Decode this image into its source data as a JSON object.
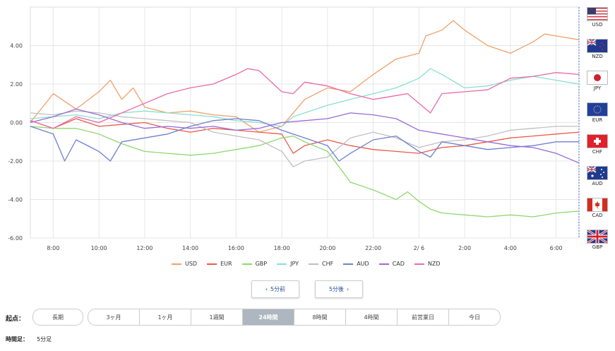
{
  "chart_data": {
    "type": "line",
    "ylim": [
      -6.0,
      6.0
    ],
    "y_ticks": [
      4.0,
      2.0,
      0.0,
      -2.0,
      -4.0,
      -6.0
    ],
    "y_tick_labels": [
      "4.00",
      "2.00",
      "0.00",
      "-2.00",
      "-4.00",
      "-6.00"
    ],
    "x_tick_labels": [
      "8:00",
      "10:00",
      "12:00",
      "14:00",
      "16:00",
      "18:00",
      "20:00",
      "22:00",
      "2/ 6",
      "2:00",
      "4:00",
      "6:00"
    ],
    "x_tick_hours": [
      8,
      10,
      12,
      14,
      16,
      18,
      20,
      22,
      24,
      26,
      28,
      30
    ],
    "xlim_hours": [
      7.0,
      31.0
    ],
    "grid": true,
    "legend_position": "bottom",
    "series": [
      {
        "name": "USD",
        "color": "#f0a06a",
        "points": [
          [
            7.0,
            0.0
          ],
          [
            8.0,
            1.5
          ],
          [
            9.0,
            0.7
          ],
          [
            10.0,
            1.6
          ],
          [
            10.5,
            2.2
          ],
          [
            11.0,
            1.2
          ],
          [
            11.5,
            1.8
          ],
          [
            12.0,
            0.8
          ],
          [
            13.0,
            0.5
          ],
          [
            14.0,
            0.6
          ],
          [
            15.0,
            0.4
          ],
          [
            16.0,
            0.3
          ],
          [
            17.0,
            -0.5
          ],
          [
            18.0,
            -0.2
          ],
          [
            18.5,
            0.5
          ],
          [
            19.0,
            1.2
          ],
          [
            20.0,
            1.8
          ],
          [
            21.0,
            1.6
          ],
          [
            22.0,
            2.5
          ],
          [
            23.0,
            3.3
          ],
          [
            24.0,
            3.6
          ],
          [
            24.3,
            4.5
          ],
          [
            25.0,
            4.8
          ],
          [
            25.5,
            5.3
          ],
          [
            26.0,
            4.8
          ],
          [
            27.0,
            4.0
          ],
          [
            28.0,
            3.6
          ],
          [
            29.0,
            4.2
          ],
          [
            29.5,
            4.6
          ],
          [
            30.0,
            4.5
          ],
          [
            31.0,
            4.3
          ]
        ]
      },
      {
        "name": "EUR",
        "color": "#ea5a4a",
        "points": [
          [
            7.0,
            0.1
          ],
          [
            8.0,
            -0.3
          ],
          [
            9.0,
            0.2
          ],
          [
            10.0,
            -0.2
          ],
          [
            11.0,
            -0.1
          ],
          [
            12.0,
            0.0
          ],
          [
            13.0,
            -0.3
          ],
          [
            14.0,
            -0.5
          ],
          [
            15.0,
            -0.3
          ],
          [
            16.0,
            -0.4
          ],
          [
            17.0,
            -0.5
          ],
          [
            18.0,
            -0.6
          ],
          [
            18.5,
            -1.6
          ],
          [
            19.0,
            -1.2
          ],
          [
            20.0,
            -0.9
          ],
          [
            21.0,
            -1.2
          ],
          [
            22.0,
            -1.4
          ],
          [
            23.0,
            -1.5
          ],
          [
            24.0,
            -1.6
          ],
          [
            25.0,
            -1.3
          ],
          [
            26.0,
            -1.2
          ],
          [
            27.0,
            -1.0
          ],
          [
            28.0,
            -0.8
          ],
          [
            29.0,
            -0.7
          ],
          [
            30.0,
            -0.6
          ],
          [
            31.0,
            -0.5
          ]
        ]
      },
      {
        "name": "GBP",
        "color": "#8ed870",
        "points": [
          [
            7.0,
            -0.2
          ],
          [
            8.0,
            -0.3
          ],
          [
            9.0,
            -0.3
          ],
          [
            10.0,
            -0.6
          ],
          [
            11.0,
            -1.1
          ],
          [
            12.0,
            -1.5
          ],
          [
            13.0,
            -1.6
          ],
          [
            14.0,
            -1.7
          ],
          [
            15.0,
            -1.6
          ],
          [
            16.0,
            -1.4
          ],
          [
            17.0,
            -1.2
          ],
          [
            18.0,
            -0.8
          ],
          [
            18.5,
            -0.7
          ],
          [
            19.0,
            -1.0
          ],
          [
            20.0,
            -1.5
          ],
          [
            20.5,
            -2.3
          ],
          [
            21.0,
            -3.1
          ],
          [
            22.0,
            -3.5
          ],
          [
            23.0,
            -4.0
          ],
          [
            23.5,
            -3.6
          ],
          [
            24.0,
            -4.1
          ],
          [
            24.5,
            -4.5
          ],
          [
            25.0,
            -4.7
          ],
          [
            26.0,
            -4.8
          ],
          [
            27.0,
            -4.9
          ],
          [
            28.0,
            -4.8
          ],
          [
            29.0,
            -4.9
          ],
          [
            30.0,
            -4.7
          ],
          [
            31.0,
            -4.6
          ]
        ]
      },
      {
        "name": "JPY",
        "color": "#88e0d0",
        "points": [
          [
            7.0,
            0.2
          ],
          [
            8.0,
            0.3
          ],
          [
            9.0,
            0.4
          ],
          [
            10.0,
            0.2
          ],
          [
            11.0,
            0.5
          ],
          [
            12.0,
            0.6
          ],
          [
            13.0,
            0.5
          ],
          [
            14.0,
            0.4
          ],
          [
            15.0,
            0.3
          ],
          [
            16.0,
            0.1
          ],
          [
            17.0,
            0.0
          ],
          [
            18.0,
            -0.2
          ],
          [
            18.5,
            0.3
          ],
          [
            19.0,
            0.5
          ],
          [
            20.0,
            0.9
          ],
          [
            21.0,
            1.2
          ],
          [
            22.0,
            1.5
          ],
          [
            23.0,
            1.8
          ],
          [
            24.0,
            2.3
          ],
          [
            24.5,
            2.8
          ],
          [
            25.0,
            2.5
          ],
          [
            26.0,
            1.8
          ],
          [
            27.0,
            1.9
          ],
          [
            28.0,
            2.2
          ],
          [
            29.0,
            2.4
          ],
          [
            30.0,
            2.2
          ],
          [
            31.0,
            2.0
          ]
        ]
      },
      {
        "name": "CHF",
        "color": "#c0c0c0",
        "points": [
          [
            7.0,
            0.5
          ],
          [
            8.0,
            0.4
          ],
          [
            9.0,
            0.6
          ],
          [
            10.0,
            0.5
          ],
          [
            11.0,
            0.3
          ],
          [
            12.0,
            0.2
          ],
          [
            13.0,
            0.1
          ],
          [
            14.0,
            0.0
          ],
          [
            15.0,
            -0.5
          ],
          [
            16.0,
            -0.7
          ],
          [
            17.0,
            -0.9
          ],
          [
            18.0,
            -1.5
          ],
          [
            18.5,
            -2.3
          ],
          [
            19.0,
            -2.0
          ],
          [
            20.0,
            -1.8
          ],
          [
            21.0,
            -0.8
          ],
          [
            22.0,
            -0.5
          ],
          [
            23.0,
            -0.8
          ],
          [
            24.0,
            -1.3
          ],
          [
            25.0,
            -1.0
          ],
          [
            26.0,
            -0.9
          ],
          [
            27.0,
            -0.7
          ],
          [
            28.0,
            -0.4
          ],
          [
            29.0,
            -0.3
          ],
          [
            30.0,
            -0.2
          ],
          [
            31.0,
            -0.2
          ]
        ]
      },
      {
        "name": "AUD",
        "color": "#6f7fd0",
        "points": [
          [
            7.0,
            -0.2
          ],
          [
            8.0,
            -0.6
          ],
          [
            8.5,
            -2.0
          ],
          [
            9.0,
            -0.9
          ],
          [
            10.0,
            -1.5
          ],
          [
            10.5,
            -2.0
          ],
          [
            11.0,
            -1.0
          ],
          [
            12.0,
            -0.8
          ],
          [
            13.0,
            -0.6
          ],
          [
            14.0,
            -0.2
          ],
          [
            15.0,
            0.1
          ],
          [
            16.0,
            0.2
          ],
          [
            17.0,
            0.1
          ],
          [
            18.0,
            -0.4
          ],
          [
            19.0,
            -0.8
          ],
          [
            20.0,
            -1.2
          ],
          [
            20.5,
            -2.0
          ],
          [
            21.0,
            -1.6
          ],
          [
            22.0,
            -0.9
          ],
          [
            23.0,
            -0.7
          ],
          [
            24.0,
            -1.5
          ],
          [
            24.5,
            -1.8
          ],
          [
            25.0,
            -1.0
          ],
          [
            26.0,
            -1.2
          ],
          [
            27.0,
            -1.4
          ],
          [
            28.0,
            -1.3
          ],
          [
            29.0,
            -1.2
          ],
          [
            30.0,
            -1.0
          ],
          [
            31.0,
            -1.0
          ]
        ]
      },
      {
        "name": "CAD",
        "color": "#9a6ad8",
        "points": [
          [
            7.0,
            0.0
          ],
          [
            8.0,
            0.3
          ],
          [
            9.0,
            0.7
          ],
          [
            10.0,
            0.4
          ],
          [
            11.0,
            0.0
          ],
          [
            12.0,
            -0.3
          ],
          [
            13.0,
            -0.2
          ],
          [
            14.0,
            -0.3
          ],
          [
            15.0,
            -0.2
          ],
          [
            16.0,
            -0.4
          ],
          [
            17.0,
            -0.3
          ],
          [
            18.0,
            0.0
          ],
          [
            19.0,
            0.1
          ],
          [
            20.0,
            0.2
          ],
          [
            21.0,
            0.5
          ],
          [
            22.0,
            0.4
          ],
          [
            23.0,
            0.2
          ],
          [
            24.0,
            -0.4
          ],
          [
            25.0,
            -0.6
          ],
          [
            26.0,
            -0.8
          ],
          [
            27.0,
            -1.0
          ],
          [
            28.0,
            -1.2
          ],
          [
            29.0,
            -1.3
          ],
          [
            30.0,
            -1.6
          ],
          [
            31.0,
            -2.1
          ]
        ]
      },
      {
        "name": "NZD",
        "color": "#ea6aa8",
        "points": [
          [
            7.0,
            0.1
          ],
          [
            8.0,
            -0.3
          ],
          [
            9.0,
            0.3
          ],
          [
            10.0,
            0.0
          ],
          [
            11.0,
            0.5
          ],
          [
            12.0,
            1.0
          ],
          [
            13.0,
            1.5
          ],
          [
            14.0,
            1.8
          ],
          [
            15.0,
            2.0
          ],
          [
            16.0,
            2.5
          ],
          [
            16.5,
            2.8
          ],
          [
            17.0,
            2.7
          ],
          [
            18.0,
            1.6
          ],
          [
            18.5,
            1.5
          ],
          [
            19.0,
            2.1
          ],
          [
            20.0,
            1.9
          ],
          [
            21.0,
            1.5
          ],
          [
            22.0,
            1.2
          ],
          [
            23.0,
            1.4
          ],
          [
            23.5,
            1.5
          ],
          [
            24.0,
            1.0
          ],
          [
            24.5,
            0.5
          ],
          [
            25.0,
            1.5
          ],
          [
            26.0,
            1.6
          ],
          [
            27.0,
            1.7
          ],
          [
            28.0,
            2.3
          ],
          [
            29.0,
            2.4
          ],
          [
            30.0,
            2.6
          ],
          [
            31.0,
            2.5
          ]
        ]
      }
    ]
  },
  "flags": [
    {
      "code": "USD",
      "icon": "us-flag"
    },
    {
      "code": "NZD",
      "icon": "nz-flag"
    },
    {
      "code": "JPY",
      "icon": "jp-flag"
    },
    {
      "code": "EUR",
      "icon": "eu-flag"
    },
    {
      "code": "CHF",
      "icon": "ch-flag"
    },
    {
      "code": "AUD",
      "icon": "au-flag"
    },
    {
      "code": "CAD",
      "icon": "ca-flag"
    },
    {
      "code": "GBP",
      "icon": "gb-flag"
    }
  ],
  "nav": {
    "prev_label": "5分前",
    "next_label": "5分後"
  },
  "range": {
    "start_label": "起点：",
    "long_term_label": "長期",
    "options": [
      "3ヶ月",
      "1ヶ月",
      "1週間",
      "24時間",
      "8時間",
      "4時間",
      "前営業日",
      "今日"
    ],
    "active": "24時間"
  },
  "timeframe": {
    "label": "時間足：",
    "value": "5分足"
  }
}
